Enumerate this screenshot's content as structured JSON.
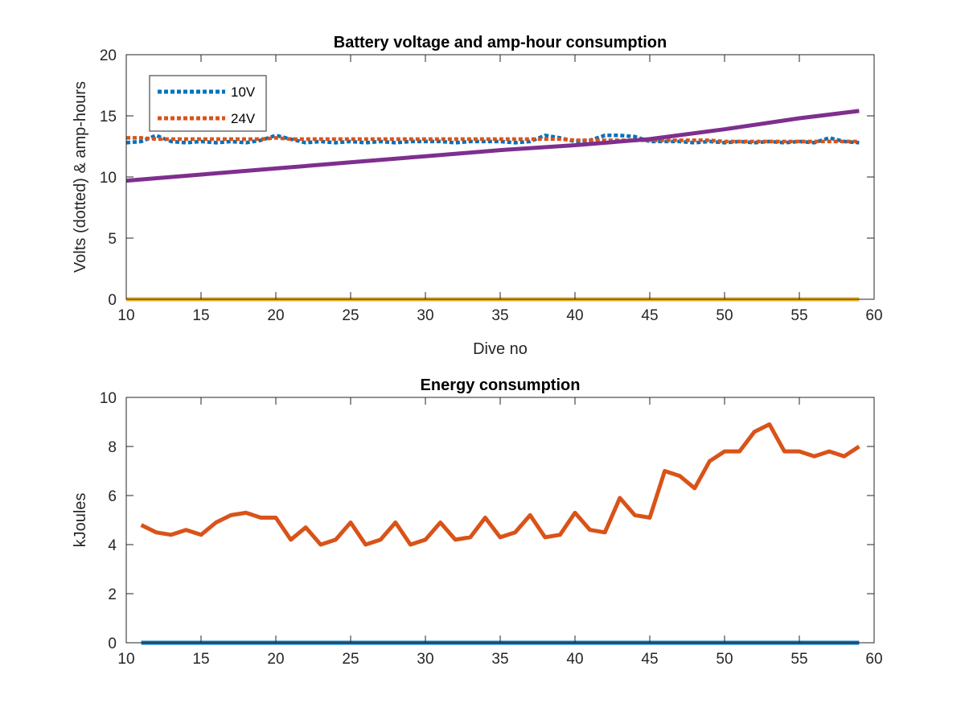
{
  "chart_data": [
    {
      "type": "line",
      "title": "Battery voltage and amp-hour consumption",
      "xlabel": "Dive no",
      "ylabel": "Volts (dotted) & amp-hours",
      "xlim": [
        10,
        60
      ],
      "ylim": [
        0,
        20
      ],
      "xticks": [
        10,
        15,
        20,
        25,
        30,
        35,
        40,
        45,
        50,
        55,
        60
      ],
      "yticks": [
        0,
        5,
        10,
        15,
        20
      ],
      "grid": false,
      "legend_position": "top-left",
      "series": [
        {
          "name": "10V",
          "style": "dotted",
          "color": "#0072BD",
          "x": [
            10,
            11,
            12,
            13,
            14,
            15,
            16,
            17,
            18,
            19,
            20,
            21,
            22,
            23,
            24,
            25,
            26,
            27,
            28,
            29,
            30,
            31,
            32,
            33,
            34,
            35,
            36,
            37,
            38,
            39,
            40,
            41,
            42,
            43,
            44,
            45,
            46,
            47,
            48,
            49,
            50,
            51,
            52,
            53,
            54,
            55,
            56,
            57,
            58,
            59
          ],
          "y": [
            12.8,
            12.9,
            13.4,
            12.9,
            12.8,
            12.9,
            12.8,
            12.9,
            12.8,
            13.0,
            13.4,
            13.1,
            12.8,
            12.9,
            12.8,
            12.9,
            12.8,
            12.9,
            12.8,
            12.9,
            12.9,
            12.9,
            12.8,
            12.9,
            12.9,
            12.9,
            12.8,
            12.9,
            13.4,
            13.2,
            12.9,
            13.0,
            13.4,
            13.4,
            13.3,
            12.9,
            12.9,
            12.9,
            12.8,
            12.9,
            12.8,
            12.9,
            12.8,
            12.9,
            12.8,
            12.9,
            12.8,
            13.2,
            12.9,
            12.8
          ]
        },
        {
          "name": "24V",
          "style": "dotted",
          "color": "#D95319",
          "x": [
            10,
            11,
            12,
            13,
            14,
            15,
            16,
            17,
            18,
            19,
            20,
            21,
            22,
            23,
            24,
            25,
            26,
            27,
            28,
            29,
            30,
            31,
            32,
            33,
            34,
            35,
            36,
            37,
            38,
            39,
            40,
            41,
            42,
            43,
            44,
            45,
            46,
            47,
            48,
            49,
            50,
            51,
            52,
            53,
            54,
            55,
            56,
            57,
            58,
            59
          ],
          "y": [
            13.2,
            13.2,
            13.1,
            13.1,
            13.1,
            13.1,
            13.1,
            13.1,
            13.1,
            13.1,
            13.2,
            13.1,
            13.1,
            13.1,
            13.1,
            13.1,
            13.1,
            13.1,
            13.1,
            13.1,
            13.1,
            13.1,
            13.1,
            13.1,
            13.1,
            13.1,
            13.1,
            13.1,
            13.1,
            13.1,
            13.0,
            13.0,
            13.0,
            13.0,
            13.0,
            13.0,
            13.0,
            13.0,
            13.0,
            13.0,
            12.9,
            12.9,
            12.9,
            12.9,
            12.9,
            12.9,
            12.9,
            12.9,
            12.9,
            12.9
          ]
        },
        {
          "style": "solid",
          "color": "#EDB120",
          "x": [
            10,
            59
          ],
          "y": [
            0,
            0
          ]
        },
        {
          "style": "solid",
          "color": "#7E2F8E",
          "x": [
            10,
            15,
            20,
            25,
            30,
            35,
            40,
            45,
            50,
            55,
            59
          ],
          "y": [
            9.7,
            10.2,
            10.7,
            11.2,
            11.7,
            12.2,
            12.6,
            13.1,
            13.9,
            14.8,
            15.4
          ]
        }
      ]
    },
    {
      "type": "line",
      "title": "Energy consumption",
      "xlabel": "",
      "ylabel": "kJoules",
      "xlim": [
        10,
        60
      ],
      "ylim": [
        0,
        10
      ],
      "xticks": [
        10,
        15,
        20,
        25,
        30,
        35,
        40,
        45,
        50,
        55,
        60
      ],
      "yticks": [
        0,
        2,
        4,
        6,
        8,
        10
      ],
      "grid": false,
      "series": [
        {
          "style": "solid",
          "color": "#D95319",
          "x": [
            11,
            12,
            13,
            14,
            15,
            16,
            17,
            18,
            19,
            20,
            21,
            22,
            23,
            24,
            25,
            26,
            27,
            28,
            29,
            30,
            31,
            32,
            33,
            34,
            35,
            36,
            37,
            38,
            39,
            40,
            41,
            42,
            43,
            44,
            45,
            46,
            47,
            48,
            49,
            50,
            51,
            52,
            53,
            54,
            55,
            56,
            57,
            58,
            59
          ],
          "y": [
            4.8,
            4.5,
            4.4,
            4.6,
            4.4,
            4.9,
            5.2,
            5.3,
            5.1,
            5.1,
            4.2,
            4.7,
            4.0,
            4.2,
            4.9,
            4.0,
            4.2,
            4.9,
            4.0,
            4.2,
            4.9,
            4.2,
            4.3,
            5.1,
            4.3,
            4.5,
            5.2,
            4.3,
            4.4,
            5.3,
            4.6,
            4.5,
            5.9,
            5.2,
            5.1,
            7.0,
            6.8,
            6.3,
            7.4,
            7.8,
            7.8,
            8.6,
            8.9,
            7.8,
            7.8,
            7.6,
            7.8,
            7.6,
            8.0
          ]
        },
        {
          "style": "solid",
          "color": "#0072BD",
          "x": [
            11,
            59
          ],
          "y": [
            0,
            0
          ]
        }
      ]
    }
  ]
}
